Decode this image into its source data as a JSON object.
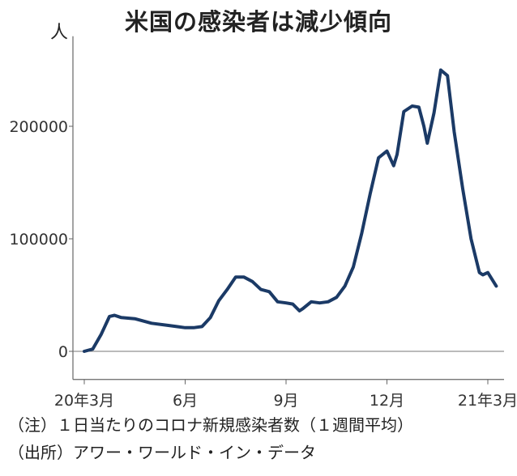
{
  "chart_data": {
    "type": "line",
    "title": "米国の感染者は減少傾向",
    "y_unit": "人",
    "ylim": [
      -25000,
      280000
    ],
    "y_ticks": [
      {
        "value": 0,
        "label": "0"
      },
      {
        "value": 100000,
        "label": "100000"
      },
      {
        "value": 200000,
        "label": "200000"
      }
    ],
    "x_ticks": [
      {
        "month": 0,
        "label": "20年3月"
      },
      {
        "month": 3,
        "label": "6月"
      },
      {
        "month": 6,
        "label": "9月"
      },
      {
        "month": 9,
        "label": "12月"
      },
      {
        "month": 12,
        "label": "21年3月"
      }
    ],
    "grid": false,
    "series": [
      {
        "color": "#1b3a66",
        "x": [
          0,
          0.25,
          0.5,
          0.75,
          0.9,
          1.1,
          1.5,
          2.0,
          2.5,
          2.75,
          3.0,
          3.25,
          3.5,
          3.75,
          4.0,
          4.25,
          4.5,
          4.75,
          5.0,
          5.25,
          5.5,
          5.75,
          6.0,
          6.2,
          6.4,
          6.5,
          6.75,
          7.0,
          7.25,
          7.5,
          7.75,
          8.0,
          8.25,
          8.5,
          8.75,
          9.0,
          9.2,
          9.3,
          9.5,
          9.75,
          9.95,
          10.1,
          10.2,
          10.4,
          10.6,
          10.8,
          11.0,
          11.25,
          11.5,
          11.75,
          11.85,
          12.0,
          12.25
        ],
        "y": [
          0,
          2000,
          15000,
          31000,
          32000,
          30000,
          29000,
          25000,
          23000,
          22000,
          21000,
          21000,
          22000,
          30000,
          45000,
          55000,
          66000,
          66000,
          62000,
          55000,
          53000,
          44000,
          43000,
          42000,
          36000,
          38000,
          44000,
          43000,
          44000,
          48000,
          58000,
          75000,
          105000,
          140000,
          172000,
          178000,
          165000,
          175000,
          213000,
          218000,
          217000,
          200000,
          185000,
          212000,
          250000,
          245000,
          195000,
          145000,
          100000,
          70000,
          68000,
          70000,
          58000
        ]
      }
    ]
  },
  "notes": {
    "line1": "（注）１日当たりのコロナ新規感染者数（１週間平均）",
    "line2": "（出所）アワー・ワールド・イン・データ"
  }
}
